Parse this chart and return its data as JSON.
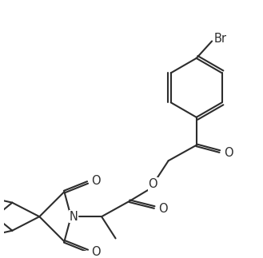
{
  "line_color": "#2d2d2d",
  "background": "#ffffff",
  "linewidth": 1.5,
  "fontsize_label": 10.5,
  "br_label": "Br",
  "o_label": "O",
  "n_label": "N"
}
